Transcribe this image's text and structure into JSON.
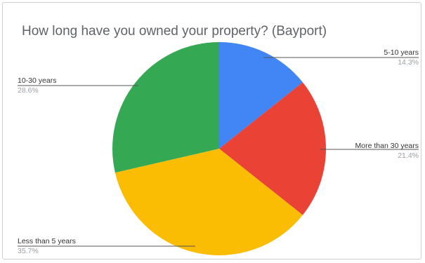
{
  "chart_data": {
    "type": "pie",
    "title": "How long have you owned your property? (Bayport)",
    "slices": [
      {
        "label": "5-10 years",
        "value": 14.3,
        "display": "14.3%",
        "color": "#4285f4"
      },
      {
        "label": "More than 30 years",
        "value": 21.4,
        "display": "21.4%",
        "color": "#ea4335"
      },
      {
        "label": "Less than 5 years",
        "value": 35.7,
        "display": "35.7%",
        "color": "#fbbc04"
      },
      {
        "label": "10-30 years",
        "value": 28.6,
        "display": "28.6%",
        "color": "#34a853"
      }
    ],
    "legend": "callout labels"
  }
}
